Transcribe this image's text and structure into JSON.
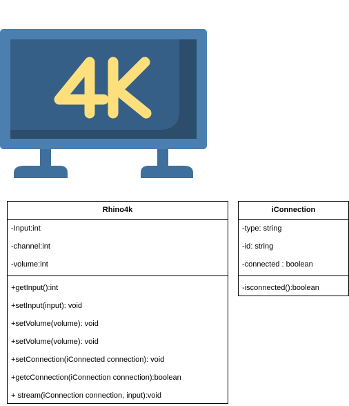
{
  "tv_icon": {
    "text": "4K",
    "colors": {
      "frame": "#4a7fb0",
      "screen": "#365f88",
      "screen_shadow": "#2c4d6b",
      "text": "#fde07c",
      "stand": "#3f6f9c"
    }
  },
  "classes": {
    "rhino4k": {
      "name": "Rhino4k",
      "attributes": [
        "-Input:int",
        "-channel:int",
        "-volume:int"
      ],
      "operations": [
        "+getInput():int",
        "+setInput(input): void",
        "+setVolume(volume): void",
        "+setVolume(volume): void",
        "+setConnection(iConnected connection): void",
        "+getcConnection(iConnection connection):boolean",
        "+ stream(iConnection connection, input):void"
      ]
    },
    "iconnection": {
      "name": "iConnection",
      "attributes": [
        "-type: string",
        "-id: string",
        "-connected : boolean"
      ],
      "operations": [
        "-isconnected():boolean"
      ]
    }
  }
}
